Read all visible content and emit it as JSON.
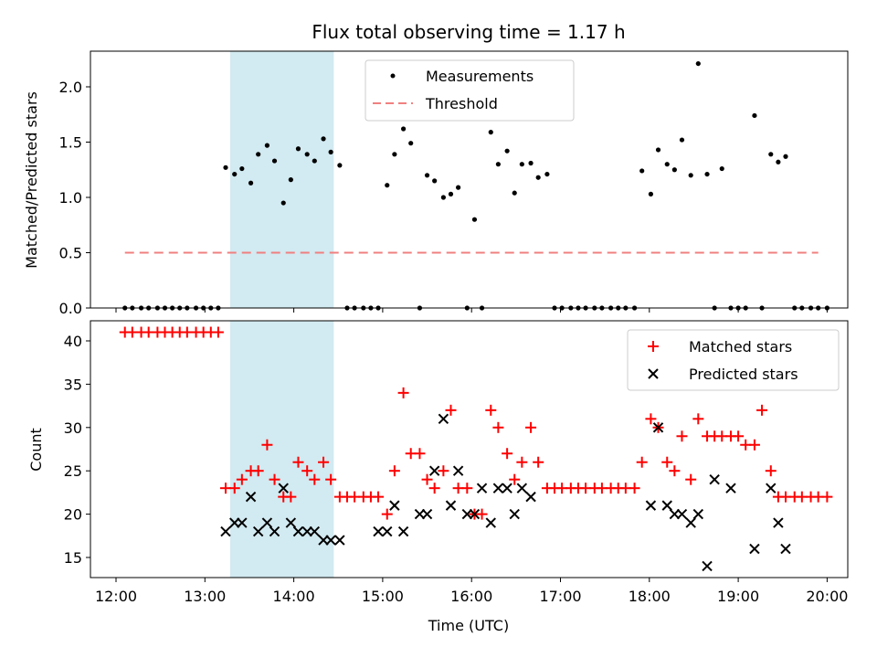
{
  "chart_data": [
    {
      "type": "scatter",
      "title": "Flux total observing time = 1.17 h",
      "xlabel": "",
      "ylabel": "Matched/Predicted stars",
      "xlim": [
        "12:00",
        "20:00"
      ],
      "ylim": [
        0,
        2.3
      ],
      "yticks": [
        "0.0",
        "0.5",
        "1.0",
        "1.5",
        "2.0"
      ],
      "legend_position": "top-center",
      "shaded_interval": {
        "start": "13:17",
        "end": "14:27",
        "color": "#add8e6"
      },
      "series": [
        {
          "name": "Measurements",
          "marker": "dot",
          "color": "#000000",
          "x": [
            "12:06",
            "12:11",
            "12:17",
            "12:22",
            "12:28",
            "12:33",
            "12:38",
            "12:43",
            "12:48",
            "12:54",
            "12:59",
            "13:04",
            "13:09",
            "13:14",
            "13:20",
            "13:25",
            "13:31",
            "13:36",
            "13:42",
            "13:47",
            "13:53",
            "13:58",
            "14:03",
            "14:09",
            "14:14",
            "14:20",
            "14:25",
            "14:31",
            "14:36",
            "14:41",
            "14:47",
            "14:52",
            "14:57",
            "15:03",
            "15:08",
            "15:14",
            "15:19",
            "15:25",
            "15:30",
            "15:35",
            "15:41",
            "15:46",
            "15:51",
            "15:57",
            "16:02",
            "16:07",
            "16:13",
            "16:18",
            "16:24",
            "16:29",
            "16:34",
            "16:40",
            "16:45",
            "16:51",
            "16:56",
            "17:01",
            "17:07",
            "17:12",
            "17:17",
            "17:23",
            "17:28",
            "17:34",
            "17:39",
            "17:44",
            "17:50",
            "17:55",
            "18:01",
            "18:06",
            "18:12",
            "18:17",
            "18:22",
            "18:28",
            "18:33",
            "18:39",
            "18:44",
            "18:49",
            "18:55",
            "19:00",
            "19:05",
            "19:11",
            "19:16",
            "19:22",
            "19:27",
            "19:32",
            "19:38",
            "19:43",
            "19:49",
            "19:54",
            "20:00"
          ],
          "values": [
            0,
            0,
            0,
            0,
            0,
            0,
            0,
            0,
            0,
            0,
            0,
            0,
            0,
            1.27,
            1.21,
            1.26,
            1.13,
            1.39,
            1.47,
            1.33,
            0.95,
            1.16,
            1.44,
            1.39,
            1.33,
            1.53,
            1.41,
            1.29,
            0,
            0,
            0,
            0,
            0,
            1.11,
            1.39,
            1.62,
            1.49,
            0,
            1.2,
            1.15,
            1.0,
            1.03,
            1.09,
            0,
            0.8,
            0,
            1.59,
            1.3,
            1.42,
            1.04,
            1.3,
            1.31,
            1.18,
            1.21,
            0,
            0,
            0,
            0,
            0,
            0,
            0,
            0,
            0,
            0,
            0,
            1.24,
            1.03,
            1.43,
            1.3,
            1.25,
            1.52,
            1.2,
            2.21,
            1.21,
            0,
            1.26,
            0,
            0,
            0,
            1.74,
            0,
            1.39,
            1.32,
            1.37,
            0,
            0,
            0,
            0,
            0
          ]
        },
        {
          "name": "Threshold",
          "type": "line",
          "style": "dashed",
          "color": "#f08080",
          "x": [
            "12:06",
            "19:54"
          ],
          "values": [
            0.5,
            0.5
          ]
        }
      ]
    },
    {
      "type": "scatter",
      "title": "",
      "xlabel": "Time (UTC)",
      "ylabel": "Count",
      "xticks": [
        "12:00",
        "13:00",
        "14:00",
        "15:00",
        "16:00",
        "17:00",
        "18:00",
        "19:00",
        "20:00"
      ],
      "yticks": [
        "15",
        "20",
        "25",
        "30",
        "35",
        "40"
      ],
      "ylim": [
        12.5,
        42.5
      ],
      "legend_position": "top-right",
      "series": [
        {
          "name": "Matched stars",
          "marker": "plus",
          "color": "#ff0000",
          "x": [
            "12:06",
            "12:11",
            "12:17",
            "12:22",
            "12:28",
            "12:33",
            "12:38",
            "12:43",
            "12:48",
            "12:54",
            "12:59",
            "13:04",
            "13:09",
            "13:14",
            "13:20",
            "13:25",
            "13:31",
            "13:36",
            "13:42",
            "13:47",
            "13:53",
            "13:58",
            "14:03",
            "14:09",
            "14:14",
            "14:20",
            "14:25",
            "14:31",
            "14:36",
            "14:41",
            "14:47",
            "14:52",
            "14:57",
            "15:03",
            "15:08",
            "15:14",
            "15:19",
            "15:25",
            "15:30",
            "15:35",
            "15:41",
            "15:46",
            "15:51",
            "15:57",
            "16:02",
            "16:07",
            "16:13",
            "16:18",
            "16:24",
            "16:29",
            "16:34",
            "16:40",
            "16:45",
            "16:51",
            "16:56",
            "17:01",
            "17:07",
            "17:12",
            "17:17",
            "17:23",
            "17:28",
            "17:34",
            "17:39",
            "17:44",
            "17:50",
            "17:55",
            "18:01",
            "18:06",
            "18:12",
            "18:17",
            "18:22",
            "18:28",
            "18:33",
            "18:39",
            "18:44",
            "18:49",
            "18:55",
            "19:00",
            "19:05",
            "19:11",
            "19:16",
            "19:22",
            "19:27",
            "19:32",
            "19:38",
            "19:43",
            "19:49",
            "19:54",
            "20:00"
          ],
          "values": [
            41,
            41,
            41,
            41,
            41,
            41,
            41,
            41,
            41,
            41,
            41,
            41,
            41,
            23,
            23,
            24,
            25,
            25,
            28,
            24,
            22,
            22,
            26,
            25,
            24,
            26,
            24,
            22,
            22,
            22,
            22,
            22,
            22,
            20,
            25,
            34,
            27,
            27,
            24,
            23,
            25,
            32,
            23,
            23,
            20,
            20,
            32,
            30,
            27,
            24,
            26,
            30,
            26,
            23,
            23,
            23,
            23,
            23,
            23,
            23,
            23,
            23,
            23,
            23,
            23,
            26,
            31,
            30,
            26,
            25,
            29,
            24,
            31,
            29,
            29,
            29,
            29,
            29,
            28,
            28,
            32,
            25,
            22,
            22,
            22,
            22,
            22,
            22,
            22
          ]
        },
        {
          "name": "Predicted stars",
          "marker": "x",
          "color": "#000000",
          "x": [
            "13:14",
            "13:20",
            "13:25",
            "13:31",
            "13:36",
            "13:42",
            "13:47",
            "13:53",
            "13:58",
            "14:03",
            "14:09",
            "14:14",
            "14:20",
            "14:25",
            "14:31",
            "14:57",
            "15:03",
            "15:08",
            "15:14",
            "15:25",
            "15:30",
            "15:35",
            "15:41",
            "15:46",
            "15:51",
            "15:57",
            "16:02",
            "16:07",
            "16:13",
            "16:18",
            "16:24",
            "16:29",
            "16:34",
            "16:40",
            "18:01",
            "18:06",
            "18:12",
            "18:17",
            "18:22",
            "18:28",
            "18:33",
            "18:39",
            "18:44",
            "18:55",
            "19:11",
            "19:22",
            "19:27",
            "19:32"
          ],
          "values": [
            18,
            19,
            19,
            22,
            18,
            19,
            18,
            23,
            19,
            18,
            18,
            18,
            17,
            17,
            17,
            18,
            18,
            21,
            18,
            20,
            20,
            25,
            31,
            21,
            25,
            20,
            20,
            23,
            19,
            23,
            23,
            20,
            23,
            22,
            21,
            30,
            21,
            20,
            20,
            19,
            20,
            14,
            24,
            23,
            16,
            23,
            19,
            16
          ]
        }
      ]
    }
  ]
}
